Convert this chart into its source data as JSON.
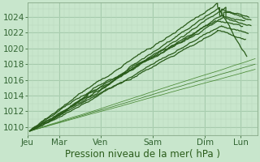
{
  "bg_color": "#c8e6cc",
  "grid_major_color": "#a0c8a8",
  "grid_minor_color": "#b8d8bc",
  "line_color_thick": "#2a5c1a",
  "line_color_thin": "#3d7a2a",
  "line_color_thin2": "#4a8a35",
  "xlabel": "Pression niveau de la mer( hPa )",
  "xlabel_fontsize": 8.5,
  "tick_fontsize": 7.5,
  "xlabels": [
    "Jeu",
    "Mar",
    "Ven",
    "Sam",
    "Dim",
    "Lun"
  ],
  "xtick_pos": [
    0,
    0.75,
    1.75,
    3.0,
    4.25,
    5.1
  ],
  "ylim": [
    1009.0,
    1025.8
  ],
  "yticks": [
    1010,
    1012,
    1014,
    1016,
    1018,
    1020,
    1022,
    1024
  ],
  "xlim": [
    0,
    5.5
  ]
}
